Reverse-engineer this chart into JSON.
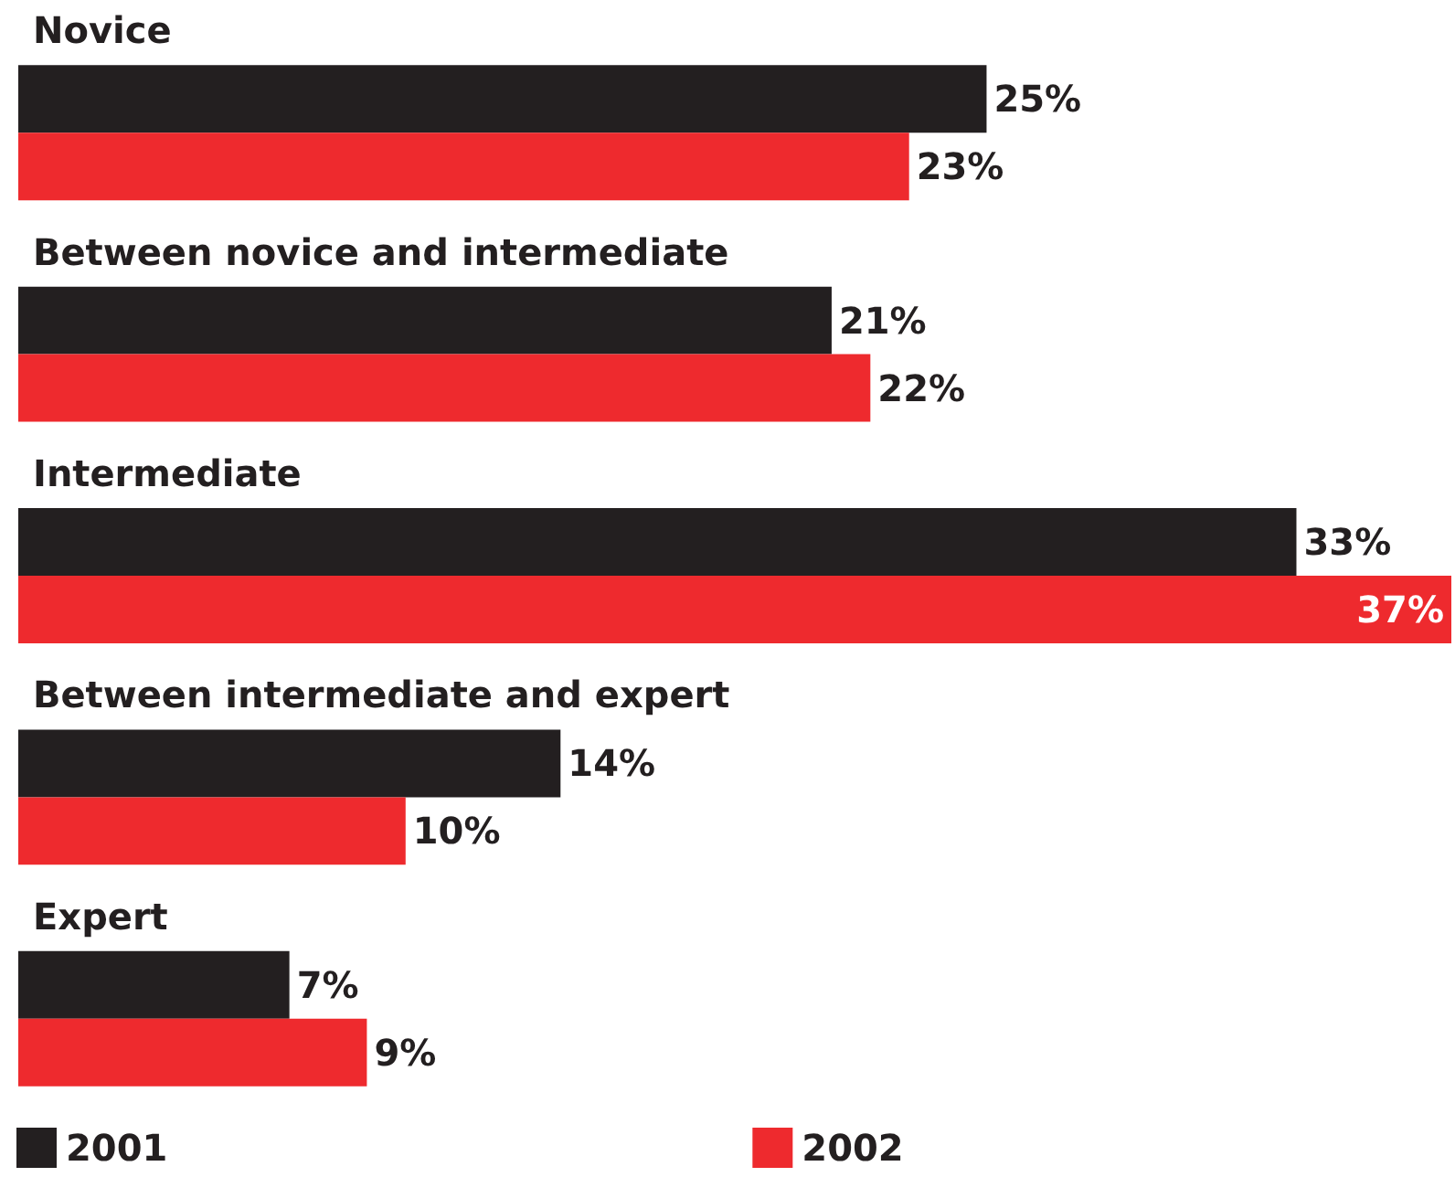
{
  "chart_data": {
    "type": "bar",
    "orientation": "horizontal",
    "categories": [
      "Novice",
      "Between novice and intermediate",
      "Intermediate",
      "Between intermediate and expert",
      "Expert"
    ],
    "series": [
      {
        "name": "2001",
        "color": "#231f20",
        "values": [
          25,
          21,
          33,
          14,
          7
        ],
        "value_labels": [
          "25%",
          "21%",
          "33%",
          "14%",
          "7%"
        ]
      },
      {
        "name": "2002",
        "color": "#ee2a2e",
        "values": [
          23,
          22,
          37,
          10,
          9
        ],
        "value_labels": [
          "23%",
          "22%",
          "37%",
          "10%",
          "9%"
        ]
      }
    ],
    "xlim": [
      0,
      37
    ],
    "tick_labels": "y",
    "legend": "bottom left"
  }
}
